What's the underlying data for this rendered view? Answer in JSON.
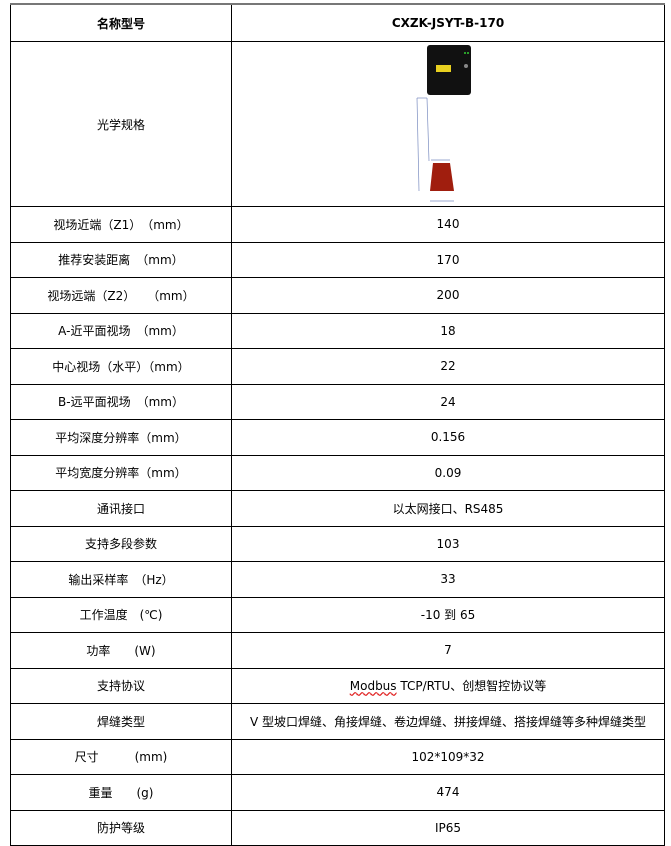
{
  "header": {
    "label": "名称型号",
    "value": "CXZK-JSYT-B-170"
  },
  "optics": {
    "label": "光学规格",
    "image": "sensor-dimension-diagram"
  },
  "rows": [
    {
      "label": "视场近端（Z1）　（mm）",
      "value": "140"
    },
    {
      "label": "推荐安装距离　（mm）",
      "value": "170"
    },
    {
      "label": "视场远端（Z2）　　（mm）",
      "value": "200"
    },
    {
      "label": "A-近平面视场　（mm）",
      "value": "18"
    },
    {
      "label": "中心视场（水平）（mm）",
      "value": "22"
    },
    {
      "label": "B-远平面视场　（mm）",
      "value": "24"
    },
    {
      "label": "平均深度分辨率（mm）",
      "value": "0.156"
    },
    {
      "label": "平均宽度分辨率（mm）",
      "value": "0.09"
    },
    {
      "label": "通讯接口",
      "value": "以太网接口、RS485"
    },
    {
      "label": "支持多段参数",
      "value": "103"
    },
    {
      "label": "输出采样率　（Hz）",
      "value": "33"
    },
    {
      "label": "工作温度　(℃)",
      "value": "-10 到 65"
    },
    {
      "label": "功率　　(W)",
      "value": "7"
    },
    {
      "label": "支持协议",
      "value_prefix": "Modbus",
      "value": " TCP/RTU、创想智控协议等"
    },
    {
      "label": "焊缝类型",
      "value": "V 型坡口焊缝、角接焊缝、卷边焊缝、拼接焊缝、搭接焊缝等多种焊缝类型"
    },
    {
      "label": "尺寸　　　(mm)",
      "value": "102*109*32"
    },
    {
      "label": "重量　　(g)",
      "value": "474"
    },
    {
      "label": "防护等级",
      "value": "IP65"
    }
  ]
}
